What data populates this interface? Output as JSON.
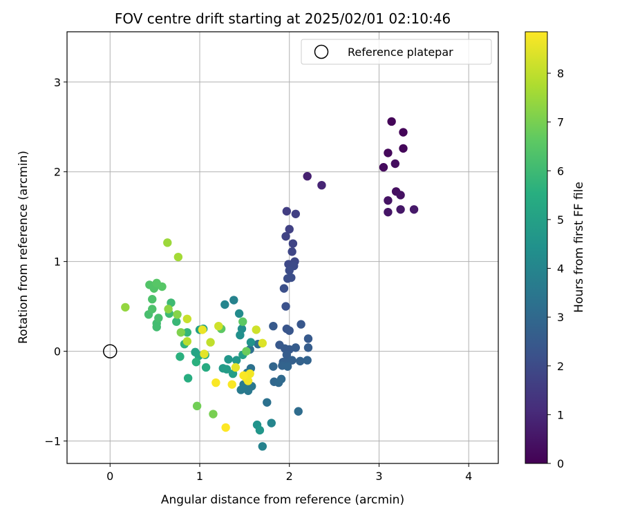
{
  "chart_data": {
    "type": "scatter",
    "title": "FOV centre drift starting at 2025/02/01 02:10:46",
    "xlabel": "Angular distance from reference (arcmin)",
    "ylabel": "Rotation from reference (arcmin)",
    "xlim": [
      -0.48,
      4.33
    ],
    "ylim": [
      -1.25,
      3.56
    ],
    "xticks": [
      0,
      1,
      2,
      3,
      4
    ],
    "yticks": [
      -1,
      0,
      1,
      2,
      3
    ],
    "grid": true,
    "legend": {
      "position": "top-right",
      "entries": [
        "Reference platepar"
      ]
    },
    "reference_point": {
      "name": "Reference platepar",
      "x": 0,
      "y": 0
    },
    "colorbar": {
      "label": "Hours from first FF file",
      "range": [
        0,
        8.85
      ],
      "ticks": [
        0,
        1,
        2,
        3,
        4,
        5,
        6,
        7,
        8
      ],
      "colormap": "viridis"
    },
    "points": [
      [
        3.14,
        2.56,
        0.1
      ],
      [
        3.27,
        2.44,
        0.1
      ],
      [
        3.27,
        2.26,
        0.15
      ],
      [
        3.1,
        2.21,
        0.2
      ],
      [
        3.05,
        2.05,
        0.25
      ],
      [
        3.18,
        2.09,
        0.3
      ],
      [
        3.19,
        1.78,
        0.35
      ],
      [
        3.24,
        1.74,
        0.4
      ],
      [
        3.1,
        1.68,
        0.45
      ],
      [
        3.1,
        1.55,
        0.5
      ],
      [
        3.24,
        1.58,
        0.55
      ],
      [
        3.39,
        1.58,
        0.6
      ],
      [
        2.2,
        1.95,
        0.8
      ],
      [
        2.36,
        1.85,
        0.9
      ],
      [
        1.97,
        1.56,
        1.6
      ],
      [
        2.07,
        1.53,
        1.65
      ],
      [
        2.0,
        1.36,
        1.7
      ],
      [
        1.96,
        1.28,
        1.75
      ],
      [
        2.04,
        1.2,
        1.8
      ],
      [
        2.03,
        1.11,
        1.85
      ],
      [
        2.06,
        1.0,
        1.9
      ],
      [
        1.99,
        0.97,
        1.95
      ],
      [
        2.05,
        0.95,
        2.0
      ],
      [
        2.0,
        0.9,
        2.05
      ],
      [
        2.02,
        0.82,
        2.1
      ],
      [
        1.98,
        0.81,
        2.1
      ],
      [
        1.94,
        0.7,
        2.15
      ],
      [
        1.96,
        0.5,
        2.2
      ],
      [
        1.82,
        0.28,
        2.5
      ],
      [
        1.97,
        0.25,
        2.3
      ],
      [
        2.0,
        0.23,
        2.35
      ],
      [
        2.13,
        0.3,
        2.4
      ],
      [
        2.21,
        0.14,
        2.5
      ],
      [
        1.89,
        0.07,
        2.45
      ],
      [
        1.95,
        0.03,
        2.5
      ],
      [
        2.0,
        0.02,
        2.5
      ],
      [
        2.07,
        0.04,
        2.55
      ],
      [
        2.21,
        0.04,
        2.6
      ],
      [
        1.97,
        -0.04,
        2.6
      ],
      [
        1.93,
        -0.12,
        2.65
      ],
      [
        1.98,
        -0.13,
        2.7
      ],
      [
        2.03,
        -0.1,
        2.7
      ],
      [
        2.12,
        -0.11,
        2.75
      ],
      [
        2.2,
        -0.1,
        2.8
      ],
      [
        1.92,
        -0.16,
        2.8
      ],
      [
        1.98,
        -0.17,
        2.85
      ],
      [
        1.82,
        -0.17,
        2.9
      ],
      [
        1.83,
        -0.34,
        2.95
      ],
      [
        1.88,
        -0.35,
        3.0
      ],
      [
        1.91,
        -0.31,
        3.05
      ],
      [
        2.1,
        -0.67,
        3.1
      ],
      [
        1.75,
        -0.57,
        3.3
      ],
      [
        1.65,
        0.08,
        3.2
      ],
      [
        1.56,
        0.02,
        3.25
      ],
      [
        1.57,
        -0.19,
        3.3
      ],
      [
        1.53,
        -0.24,
        3.4
      ],
      [
        1.58,
        -0.39,
        3.5
      ],
      [
        1.54,
        -0.44,
        3.55
      ],
      [
        1.46,
        -0.43,
        3.6
      ],
      [
        1.49,
        -0.37,
        3.65
      ],
      [
        1.8,
        -0.8,
        4.0
      ],
      [
        1.7,
        -1.06,
        3.9
      ],
      [
        1.38,
        0.57,
        3.9
      ],
      [
        1.28,
        0.52,
        4.0
      ],
      [
        1.44,
        0.42,
        4.2
      ],
      [
        1.47,
        0.25,
        4.3
      ],
      [
        1.45,
        0.18,
        4.4
      ],
      [
        1.57,
        0.1,
        4.5
      ],
      [
        1.32,
        -0.09,
        4.6
      ],
      [
        1.41,
        -0.1,
        4.7
      ],
      [
        1.26,
        -0.19,
        4.8
      ],
      [
        1.3,
        -0.2,
        4.85
      ],
      [
        1.37,
        -0.25,
        4.9
      ],
      [
        1.64,
        -0.82,
        4.5
      ],
      [
        1.67,
        -0.88,
        4.6
      ],
      [
        1.48,
        -0.04,
        5.0
      ],
      [
        1.04,
        0.25,
        5.0
      ],
      [
        1.0,
        0.24,
        5.0
      ],
      [
        0.95,
        -0.01,
        5.1
      ],
      [
        0.99,
        -0.05,
        5.2
      ],
      [
        1.06,
        -0.04,
        5.3
      ],
      [
        1.07,
        -0.18,
        5.4
      ],
      [
        0.87,
        -0.3,
        5.5
      ],
      [
        0.78,
        -0.06,
        5.6
      ],
      [
        0.96,
        -0.12,
        5.6
      ],
      [
        0.83,
        0.08,
        5.7
      ],
      [
        0.86,
        0.21,
        5.8
      ],
      [
        0.74,
        0.33,
        5.9
      ],
      [
        0.66,
        0.42,
        6.0
      ],
      [
        0.68,
        0.54,
        6.0
      ],
      [
        0.52,
        0.27,
        6.1
      ],
      [
        0.52,
        0.31,
        6.1
      ],
      [
        0.54,
        0.37,
        6.2
      ],
      [
        0.43,
        0.41,
        6.2
      ],
      [
        0.47,
        0.47,
        6.3
      ],
      [
        0.47,
        0.58,
        6.3
      ],
      [
        0.49,
        0.7,
        6.4
      ],
      [
        0.44,
        0.74,
        6.4
      ],
      [
        0.52,
        0.76,
        6.5
      ],
      [
        0.58,
        0.72,
        6.5
      ],
      [
        1.24,
        0.25,
        6.6
      ],
      [
        1.48,
        0.33,
        6.6
      ],
      [
        1.52,
        0.0,
        6.8
      ],
      [
        0.97,
        -0.61,
        6.9
      ],
      [
        1.15,
        -0.7,
        7.0
      ],
      [
        0.79,
        0.21,
        7.1
      ],
      [
        0.75,
        0.41,
        7.2
      ],
      [
        0.65,
        0.47,
        7.3
      ],
      [
        0.17,
        0.49,
        7.4
      ],
      [
        0.64,
        1.21,
        7.5
      ],
      [
        0.76,
        1.05,
        7.6
      ],
      [
        0.86,
        0.11,
        7.9
      ],
      [
        1.12,
        0.1,
        8.0
      ],
      [
        0.86,
        0.36,
        8.1
      ],
      [
        1.21,
        0.28,
        8.2
      ],
      [
        1.63,
        0.24,
        8.2
      ],
      [
        1.7,
        0.09,
        8.4
      ],
      [
        1.4,
        -0.18,
        8.5
      ],
      [
        1.52,
        -0.3,
        8.6
      ],
      [
        1.56,
        -0.25,
        8.7
      ],
      [
        1.54,
        -0.33,
        8.7
      ],
      [
        1.49,
        -0.27,
        8.8
      ],
      [
        1.36,
        -0.37,
        8.8
      ],
      [
        1.18,
        -0.35,
        8.8
      ],
      [
        1.29,
        -0.85,
        8.85
      ],
      [
        1.03,
        0.24,
        8.6
      ],
      [
        1.05,
        -0.03,
        8.5
      ]
    ]
  }
}
